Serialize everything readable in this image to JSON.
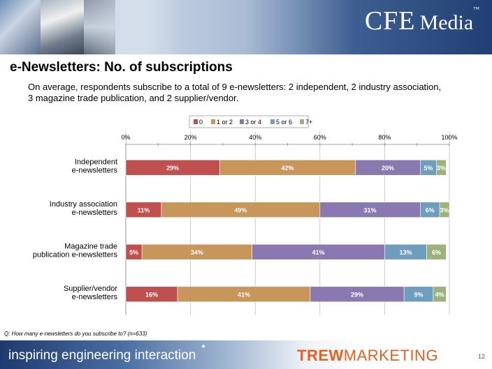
{
  "header": {
    "brand_main": "CFE",
    "brand_sub": "Media",
    "brand_tm": "™"
  },
  "slide": {
    "title": "e-Newsletters: No. of subscriptions",
    "subtitle": "On average, respondents subscribe to a total of 9 e-newsletters: 2 independent, 2 industry association, 3 magazine trade publication, and 2 supplier/vendor.",
    "question": "Q: How many e-newsletters do you subscribe to? (n=633)",
    "page_number": "12"
  },
  "footer": {
    "tagline": "inspiring engineering interaction",
    "logo_part1": "TREW",
    "logo_part2": "MARKETING"
  },
  "chart_data": {
    "type": "bar",
    "orientation": "horizontal",
    "stacked": "100%",
    "categories": [
      [
        "Independent",
        "e-newsletters"
      ],
      [
        "Industry association",
        "e-newsletters"
      ],
      [
        "Magazine trade",
        "publication e-newsletters"
      ],
      [
        "Supplier/vendor",
        "e-newsletters"
      ]
    ],
    "series": [
      {
        "name": "0",
        "color": "#c0504d",
        "values": [
          29,
          11,
          5,
          16
        ]
      },
      {
        "name": "1 or 2",
        "color": "#c8965a",
        "values": [
          42,
          49,
          34,
          41
        ]
      },
      {
        "name": "3 or 4",
        "color": "#8a79b0",
        "values": [
          20,
          31,
          41,
          29
        ]
      },
      {
        "name": "5 or 6",
        "color": "#6f9dbd",
        "values": [
          5,
          6,
          13,
          9
        ]
      },
      {
        "name": "7+",
        "color": "#9bb37a",
        "values": [
          3,
          3,
          6,
          4
        ]
      }
    ],
    "value_labels": [
      [
        "29%",
        "42%",
        "20%",
        "5%",
        "3%"
      ],
      [
        "11%",
        "49%",
        "31%",
        "6%",
        "3%"
      ],
      [
        "5%",
        "34%",
        "41%",
        "13%",
        "6%"
      ],
      [
        "16%",
        "41%",
        "29%",
        "9%",
        "4%"
      ]
    ],
    "x_ticks": [
      "0%",
      "20%",
      "40%",
      "60%",
      "80%",
      "100%"
    ],
    "xlim": [
      0,
      100
    ],
    "grid": true,
    "legend_position": "top"
  }
}
